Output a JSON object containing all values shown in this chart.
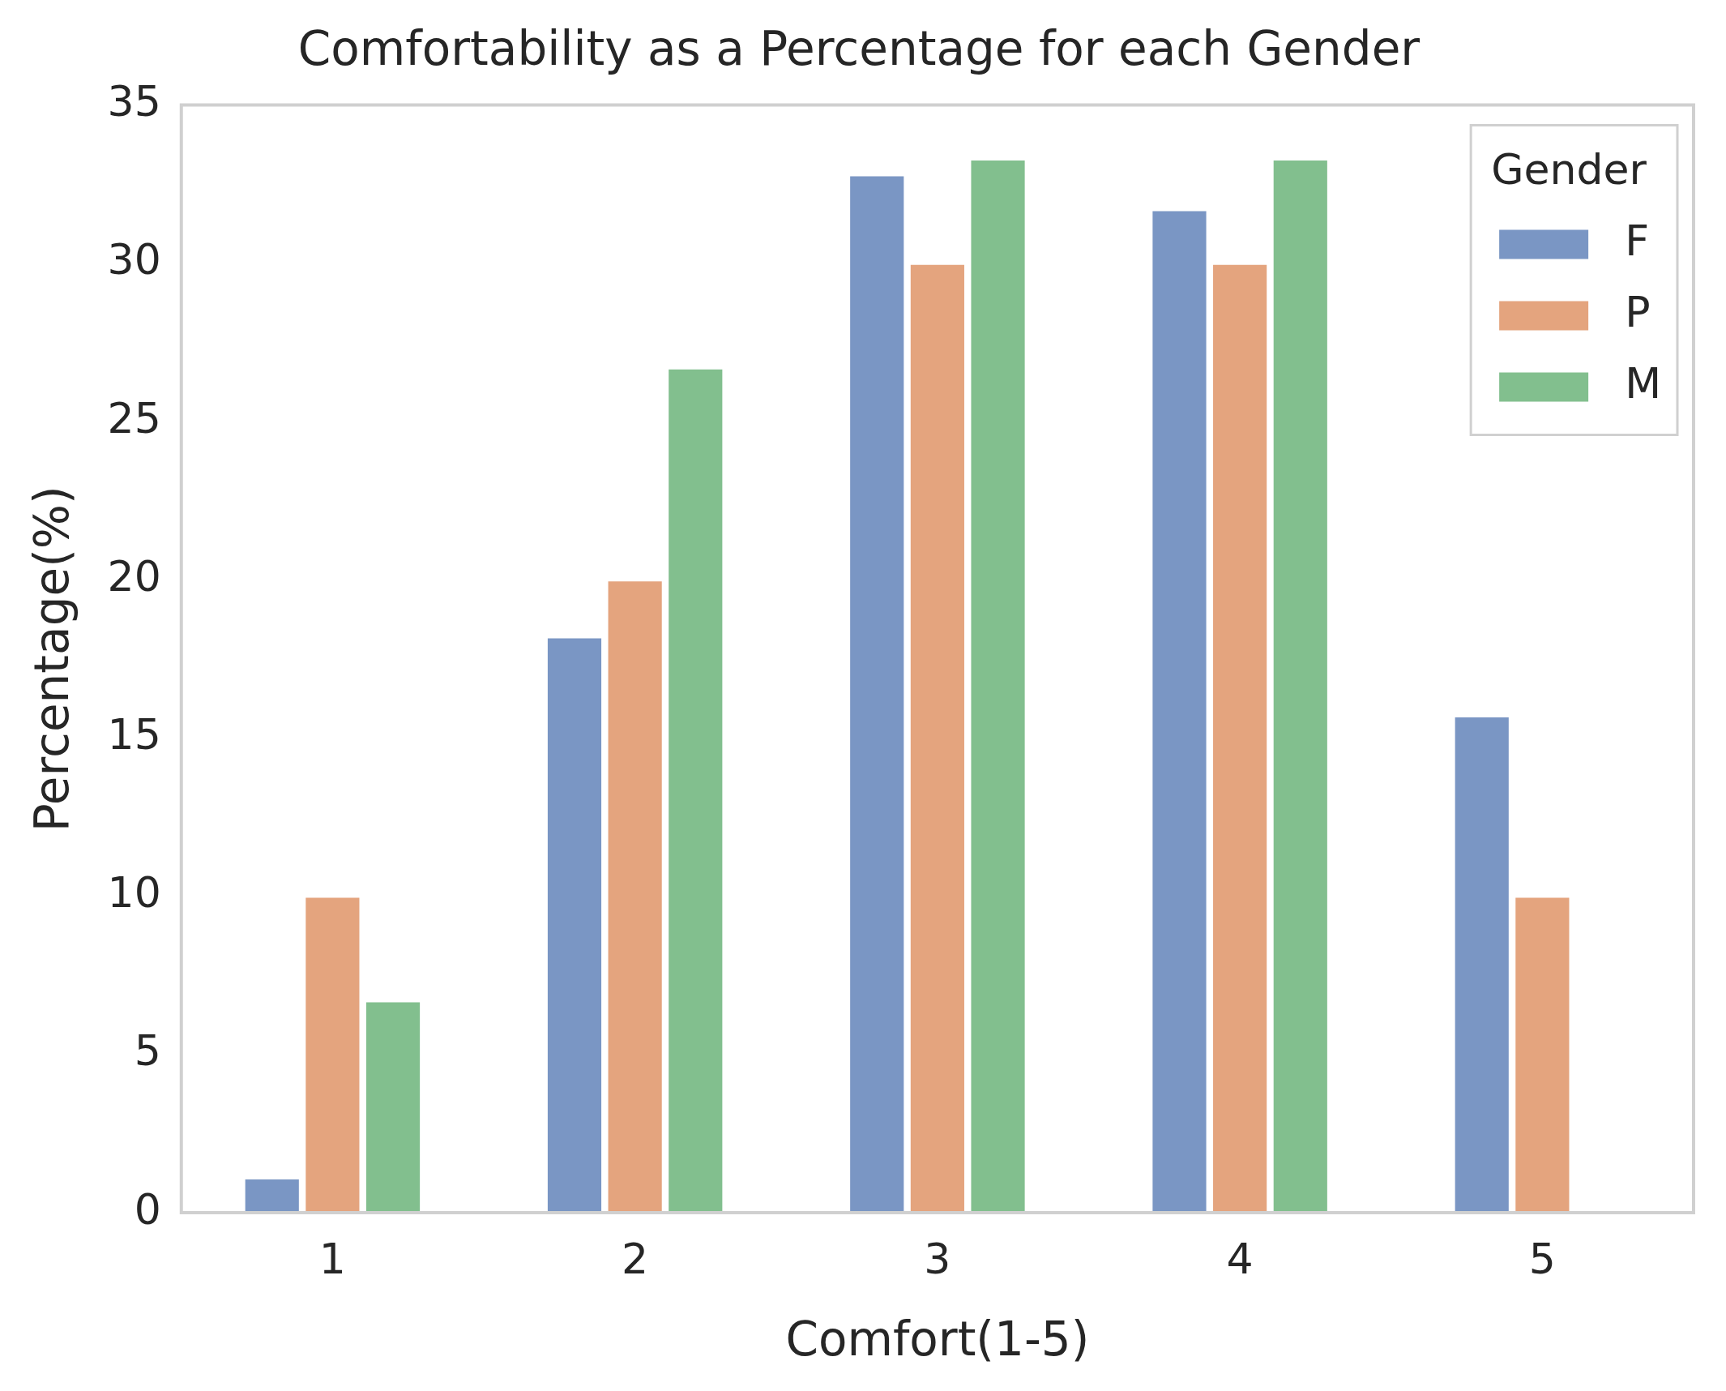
{
  "chart_data": {
    "type": "bar",
    "title": "Comfortability as a Percentage for each Gender",
    "xlabel": "Comfort(1-5)",
    "ylabel": "Percentage(%)",
    "legend_title": "Gender",
    "categories": [
      "1",
      "2",
      "3",
      "4",
      "5"
    ],
    "series": [
      {
        "name": "F",
        "color": "#7a96c4",
        "values": [
          1.1,
          18.2,
          32.8,
          31.7,
          15.7
        ]
      },
      {
        "name": "P",
        "color": "#e4a47e",
        "values": [
          10,
          20,
          30,
          30,
          10
        ]
      },
      {
        "name": "M",
        "color": "#82bf8e",
        "values": [
          6.7,
          26.7,
          33.3,
          33.3,
          null
        ]
      }
    ],
    "ylim": [
      0,
      35
    ],
    "yticks": [
      0,
      5,
      10,
      15,
      20,
      25,
      30,
      35
    ],
    "grid": false,
    "legend": "top right"
  }
}
